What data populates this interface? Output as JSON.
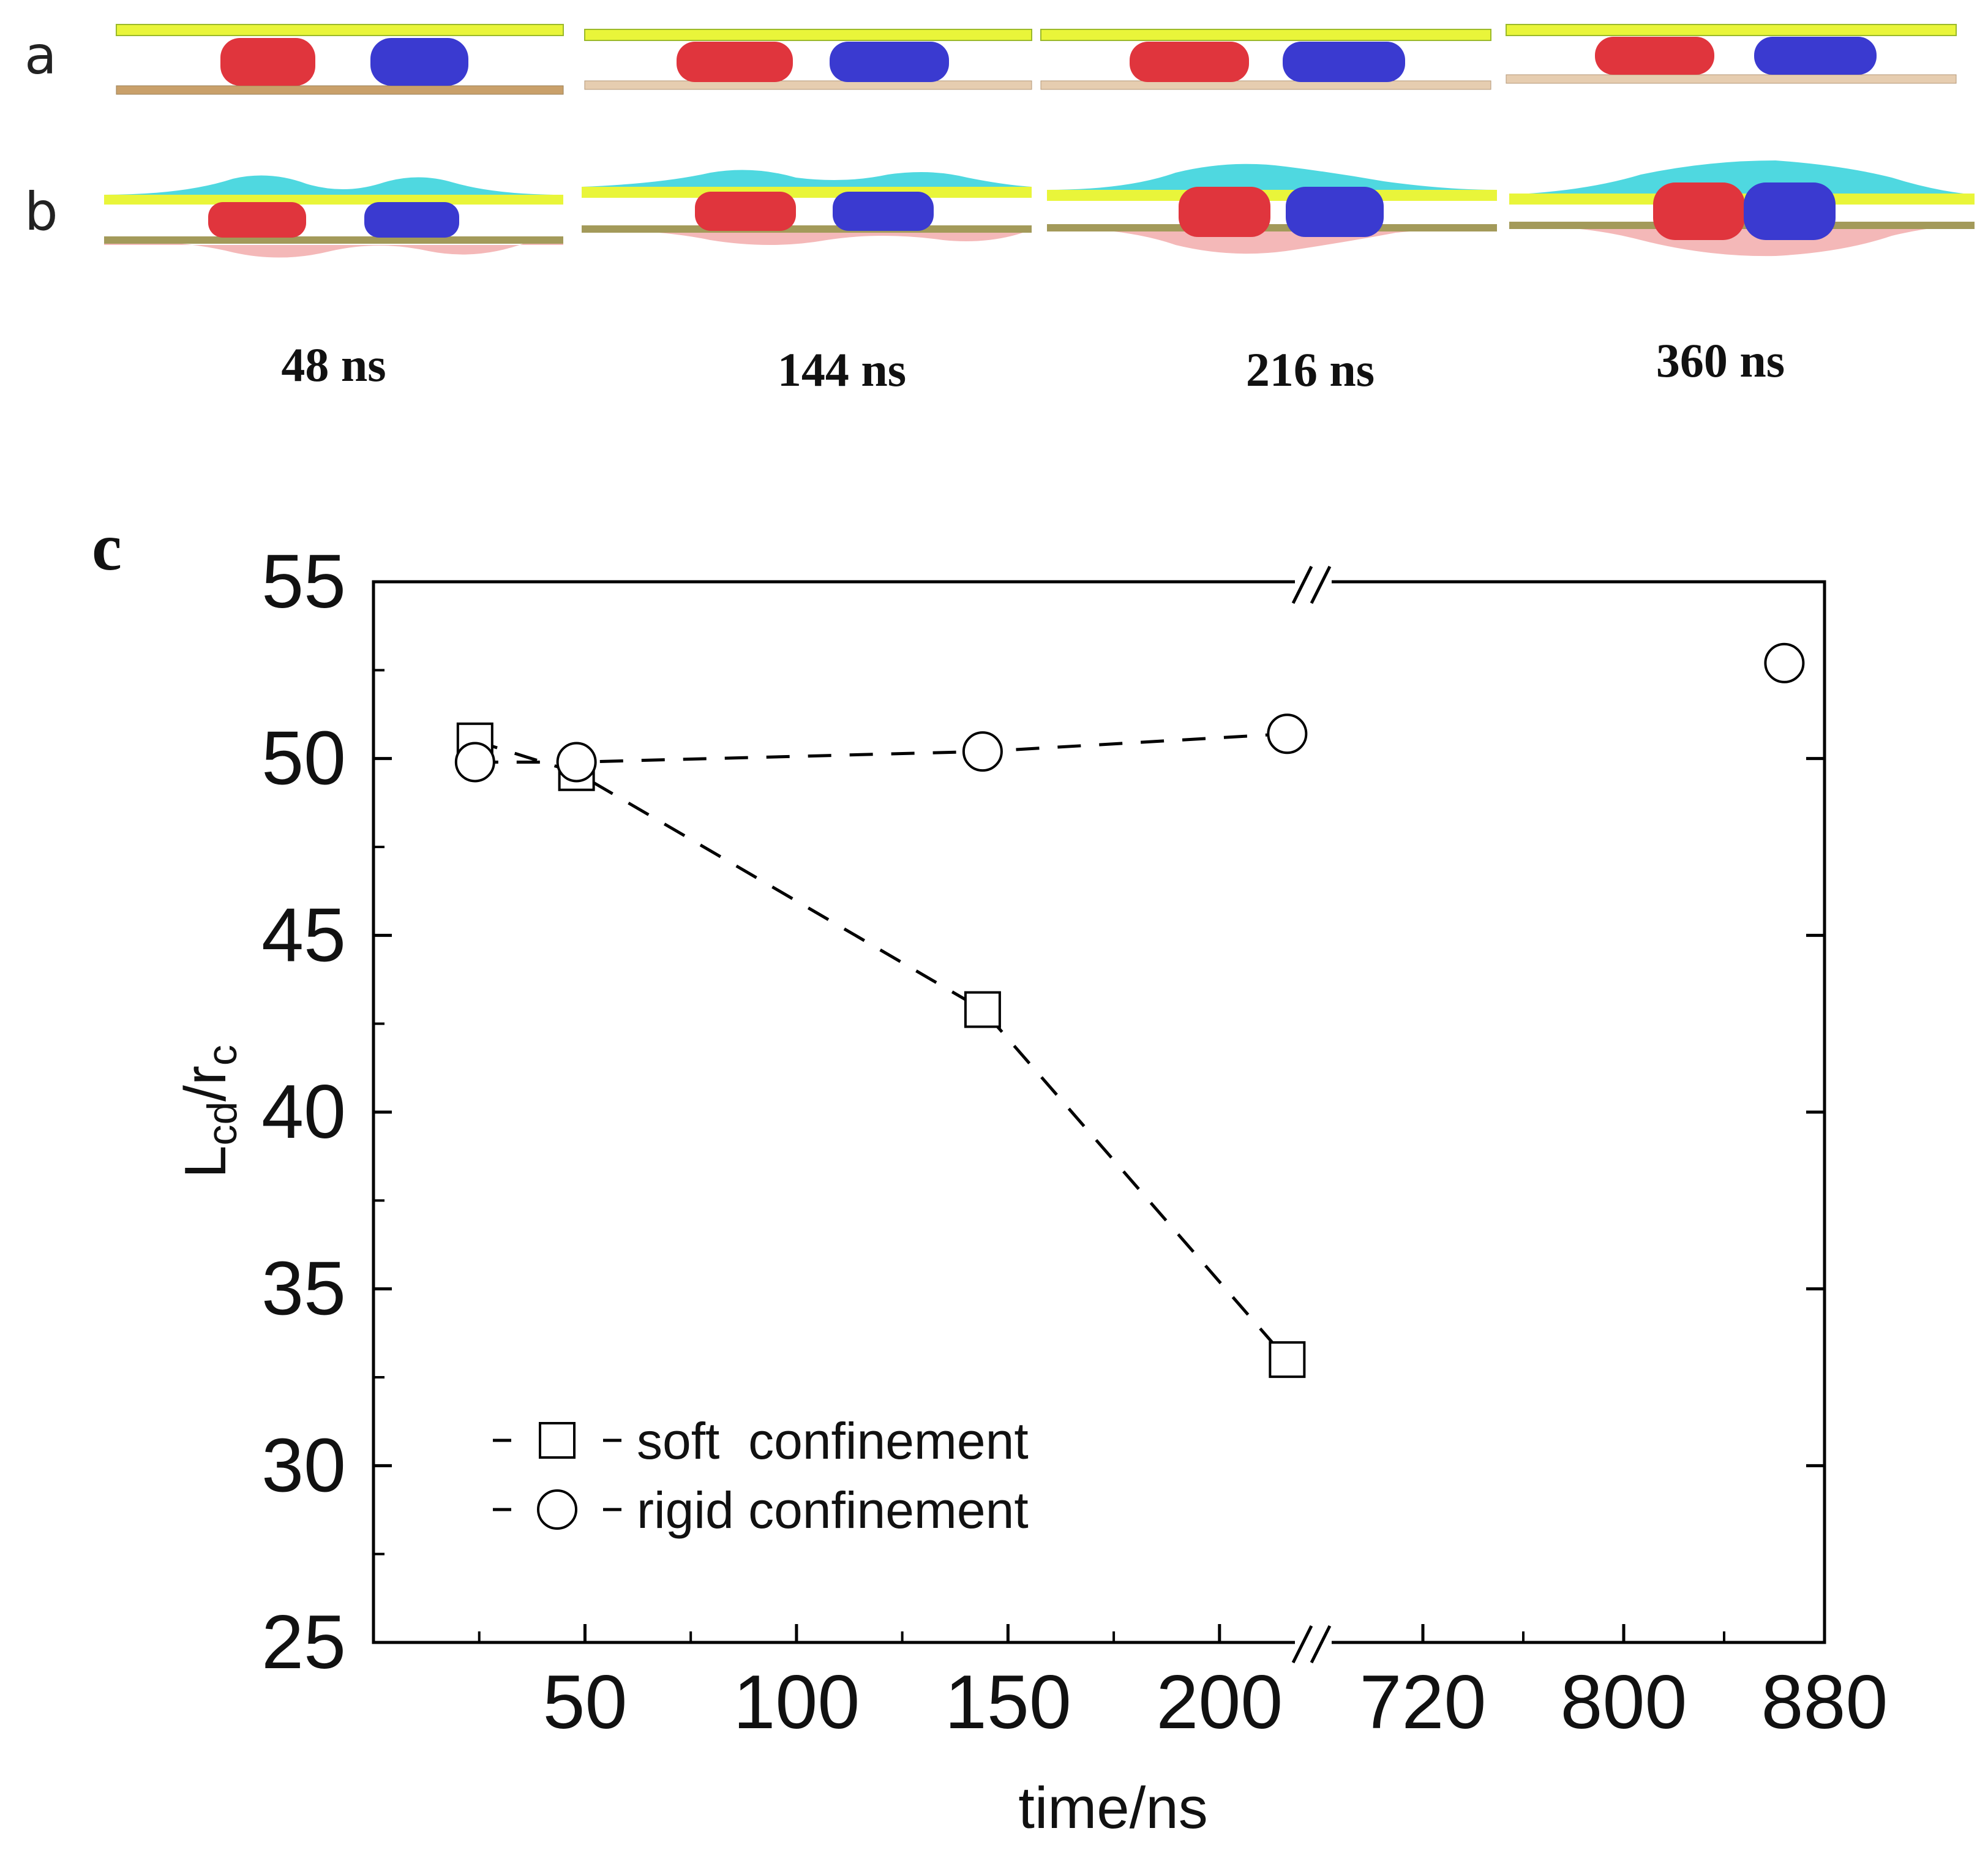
{
  "panels": {
    "a_label": "a",
    "b_label": "b",
    "c_label": "c",
    "snapshot_times": [
      "48 ns",
      "144 ns",
      "216 ns",
      "360 ns"
    ],
    "droplet_colors": {
      "left": "#e0353d",
      "right": "#3a3ad0"
    },
    "membrane_colors": {
      "top_yellow": "#e9f53a",
      "top_cyan": "#4fd8e0",
      "bottom_tan": "#c9a06a",
      "bottom_pink": "#f4b8b8"
    }
  },
  "chart_data": {
    "type": "scatter",
    "title": "",
    "xlabel": "time/ns",
    "ylabel_main": "L",
    "ylabel_sub": "cd",
    "ylabel_mid": "/r",
    "ylabel_sub2": "c",
    "ylabel": "Lcd/rc",
    "ylim": [
      25,
      55
    ],
    "yticks": [
      "55",
      "50",
      "45",
      "40",
      "35",
      "30",
      "25"
    ],
    "x_segments": [
      {
        "xlim": [
          0,
          220
        ],
        "ticks": [
          "50",
          "100",
          "150",
          "200"
        ],
        "tick_values": [
          50,
          100,
          150,
          200
        ]
      },
      {
        "xlim": [
          680,
          880
        ],
        "ticks": [
          "720",
          "800",
          "880"
        ],
        "tick_values": [
          720,
          800,
          880
        ]
      }
    ],
    "series": [
      {
        "name": "soft  confinement",
        "marker": "square",
        "line": "dashed",
        "x": [
          24,
          48,
          144,
          216
        ],
        "y": [
          50.5,
          49.6,
          42.9,
          33.0
        ]
      },
      {
        "name": "rigid confinement",
        "marker": "circle",
        "line": "dashed",
        "x": [
          24,
          48,
          144,
          216,
          864
        ],
        "y": [
          49.9,
          49.9,
          50.2,
          50.7,
          52.7
        ]
      }
    ],
    "legend": "bottom-left"
  }
}
